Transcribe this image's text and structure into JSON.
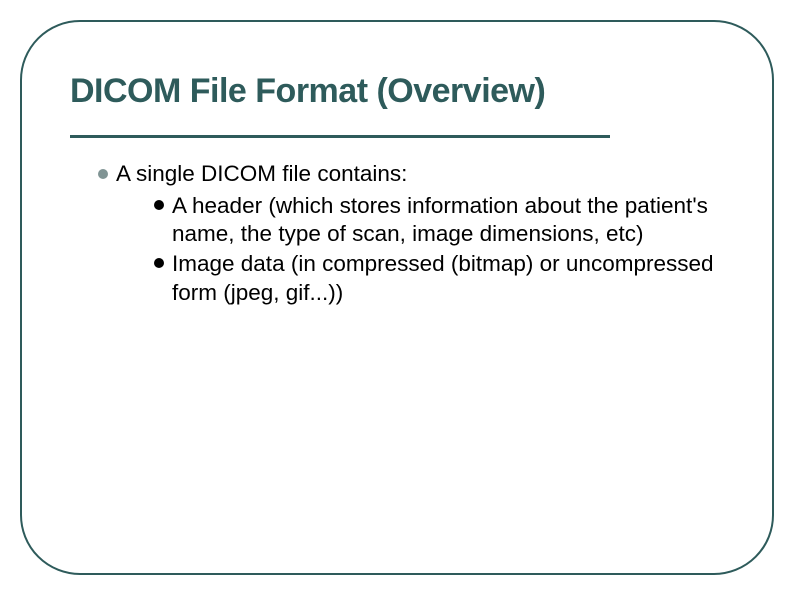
{
  "slide": {
    "title": "DICOM File Format (Overview)",
    "title_color": "#2e5b5b",
    "title_fontsize": 34,
    "border_color": "#2e5b5b",
    "border_radius": 60,
    "divider_color": "#2e5b5b",
    "background": "#ffffff",
    "level1": {
      "bullet_color": "#809494",
      "text": "A single DICOM file contains:"
    },
    "level2_bullet_color": "#000000",
    "level2_items": [
      "A header (which stores information about the patient's name, the type of scan, image dimensions, etc)",
      "Image data (in compressed (bitmap) or uncompressed form (jpeg, gif...))"
    ],
    "body_fontsize": 22.5,
    "body_color": "#000000"
  }
}
